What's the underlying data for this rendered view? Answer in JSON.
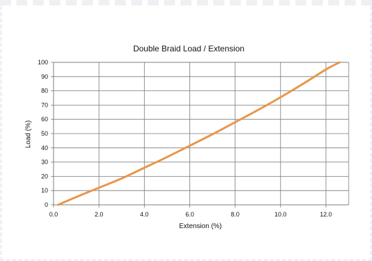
{
  "chart_data": {
    "type": "line",
    "title": "Double Braid Load / Extension",
    "xlabel": "Extension (%)",
    "ylabel": "Load (%)",
    "xlim": [
      0,
      13
    ],
    "ylim": [
      0,
      100
    ],
    "x_ticks": [
      "0.0",
      "2.0",
      "4.0",
      "6.0",
      "8.0",
      "10.0",
      "12.0"
    ],
    "x_tick_values": [
      0,
      2,
      4,
      6,
      8,
      10,
      12
    ],
    "y_ticks": [
      "0",
      "10",
      "20",
      "30",
      "40",
      "50",
      "60",
      "70",
      "80",
      "90",
      "100"
    ],
    "y_tick_values": [
      0,
      10,
      20,
      30,
      40,
      50,
      60,
      70,
      80,
      90,
      100
    ],
    "grid": true,
    "series": [
      {
        "color": "#e8964a",
        "x": [
          0.2,
          1.0,
          2.0,
          3.0,
          4.0,
          5.0,
          6.0,
          7.0,
          8.0,
          9.0,
          10.0,
          11.0,
          12.0,
          12.6
        ],
        "y": [
          0,
          5.5,
          12,
          18.5,
          26,
          33.5,
          41.5,
          49.5,
          58,
          66.5,
          75.5,
          85,
          95,
          100
        ]
      }
    ]
  }
}
